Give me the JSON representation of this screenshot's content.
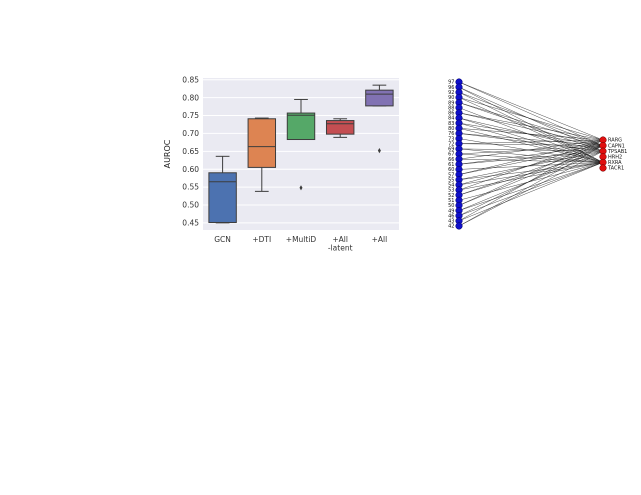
{
  "chart_data": [
    {
      "type": "box",
      "title": "",
      "xlabel": "",
      "ylabel": "AUROC",
      "ylim": [
        0.43,
        0.855
      ],
      "yticks": [
        "0.45",
        "0.50",
        "0.55",
        "0.60",
        "0.65",
        "0.70",
        "0.75",
        "0.80",
        "0.85"
      ],
      "grid": true,
      "categories": [
        "GCN",
        "+DTI",
        "+MultiD",
        "+All\n-latent",
        "+All"
      ],
      "boxes": [
        {
          "name": "GCN",
          "color": "#4c72b0",
          "whislo": 0.45,
          "q1": 0.451,
          "med": 0.565,
          "q3": 0.59,
          "whishi": 0.636,
          "fliers": []
        },
        {
          "name": "+DTI",
          "color": "#dd8452",
          "whislo": 0.538,
          "q1": 0.605,
          "med": 0.663,
          "q3": 0.741,
          "whishi": 0.743,
          "fliers": []
        },
        {
          "name": "+MultiD",
          "color": "#55a868",
          "whislo": 0.683,
          "q1": 0.683,
          "med": 0.751,
          "q3": 0.757,
          "whishi": 0.795,
          "fliers": [
            0.548
          ]
        },
        {
          "name": "+All\n-latent",
          "color": "#c44e52",
          "whislo": 0.689,
          "q1": 0.698,
          "med": 0.727,
          "q3": 0.736,
          "whishi": 0.741,
          "fliers": []
        },
        {
          "name": "+All",
          "color": "#8172b3",
          "whislo": 0.777,
          "q1": 0.777,
          "med": 0.81,
          "q3": 0.821,
          "whishi": 0.835,
          "fliers": [
            0.652
          ]
        }
      ]
    },
    {
      "type": "bipartite",
      "left_color": "#1010c8",
      "right_color": "#e01010",
      "left_nodes": [
        "97",
        "96",
        "92",
        "90",
        "89",
        "88",
        "86",
        "84",
        "83",
        "80",
        "76",
        "73",
        "72",
        "69",
        "67",
        "66",
        "61",
        "60",
        "57",
        "55",
        "54",
        "53",
        "52",
        "51",
        "50",
        "49",
        "46",
        "43",
        "42"
      ],
      "right_nodes": [
        "RARG",
        "CAPN1",
        "TPSAB1",
        "HRH2",
        "RXRA",
        "TACR1"
      ]
    }
  ]
}
